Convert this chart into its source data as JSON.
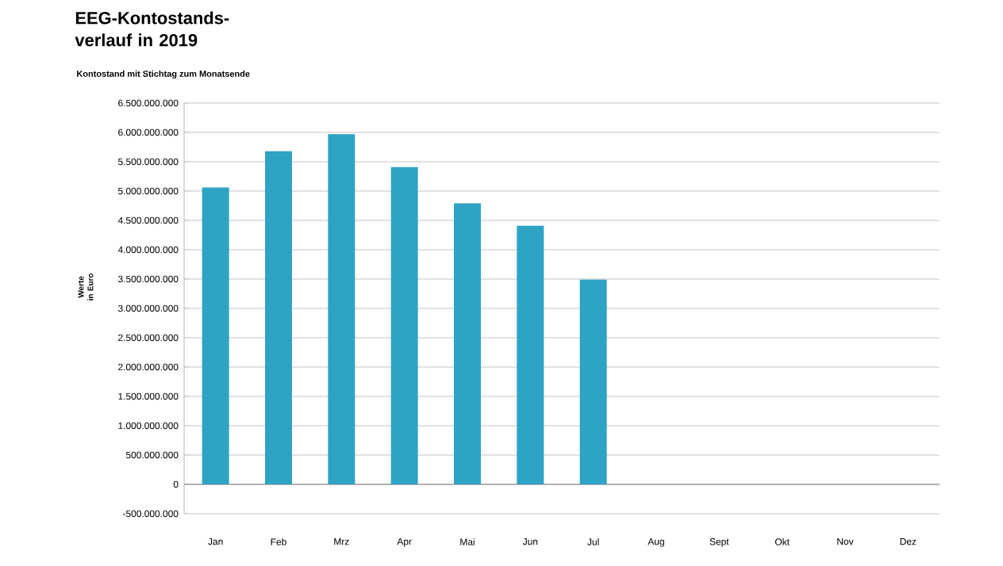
{
  "chart_data": {
    "type": "bar",
    "title": "EEG-Kontostands-verlauf in 2019",
    "subtitle": "Kontostand mit Stichtag zum Monatsende",
    "ylabel": "Werte in Euro",
    "categories": [
      "Jan",
      "Feb",
      "Mrz",
      "Apr",
      "Mai",
      "Jun",
      "Jul",
      "Aug",
      "Sept",
      "Okt",
      "Nov",
      "Dez"
    ],
    "values": [
      5060000000,
      5680000000,
      5970000000,
      5410000000,
      4790000000,
      4410000000,
      3490000000,
      null,
      null,
      null,
      null,
      null
    ],
    "color": "#2fa3c4",
    "ylim": [
      -500000000,
      6500000000
    ],
    "yticks": [
      {
        "value": -500000000,
        "label": "-500.000.000"
      },
      {
        "value": 0,
        "label": "0"
      },
      {
        "value": 500000000,
        "label": "500.000.000"
      },
      {
        "value": 1000000000,
        "label": "1.000.000.000"
      },
      {
        "value": 1500000000,
        "label": "1.500.000.000"
      },
      {
        "value": 2000000000,
        "label": "2.000.000.000"
      },
      {
        "value": 2500000000,
        "label": "2.500.000.000"
      },
      {
        "value": 3000000000,
        "label": "3.000.000.000"
      },
      {
        "value": 3500000000,
        "label": "3.500.000.000"
      },
      {
        "value": 4000000000,
        "label": "4.000.000.000"
      },
      {
        "value": 4500000000,
        "label": "4.500.000.000"
      },
      {
        "value": 5000000000,
        "label": "5.000.000.000"
      },
      {
        "value": 5500000000,
        "label": "5.500.000.000"
      },
      {
        "value": 6000000000,
        "label": "6.000.000.000"
      },
      {
        "value": 6500000000,
        "label": "6.500.000.000"
      }
    ],
    "grid": "y"
  }
}
